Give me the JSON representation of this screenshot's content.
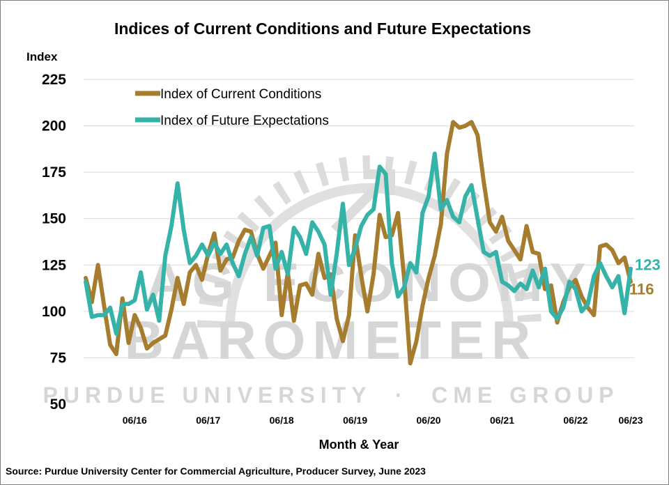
{
  "chart_data": {
    "type": "line",
    "title": "Indices of Current Conditions and Future Expectations",
    "ylabel": "Index",
    "xlabel": "Month & Year",
    "ylim": [
      50,
      225
    ],
    "yticks": [
      50,
      75,
      100,
      125,
      150,
      175,
      200,
      225
    ],
    "xticks": [
      "06/16",
      "06/17",
      "06/18",
      "06/19",
      "06/20",
      "06/21",
      "06/22",
      "06/23"
    ],
    "grid": true,
    "legend_position": "top-left",
    "x_start": "10/15",
    "x_step": "1 month",
    "series": [
      {
        "name": "Index of Current Conditions",
        "color": "#A67C2E",
        "end_label": "116",
        "values": [
          118,
          105,
          125,
          103,
          82,
          77,
          107,
          83,
          98,
          91,
          80,
          83,
          85,
          87,
          101,
          118,
          104,
          121,
          125,
          117,
          131,
          142,
          122,
          128,
          129,
          138,
          144,
          143,
          131,
          123,
          130,
          137,
          98,
          121,
          95,
          114,
          115,
          109,
          131,
          118,
          120,
          96,
          84,
          98,
          141,
          119,
          100,
          120,
          152,
          140,
          141,
          153,
          118,
          72,
          84,
          103,
          118,
          130,
          147,
          185,
          202,
          199,
          200,
          202,
          195,
          170,
          148,
          143,
          151,
          138,
          133,
          128,
          146,
          132,
          131,
          112,
          114,
          94,
          105,
          113,
          117,
          108,
          102,
          98,
          135,
          136,
          133,
          126,
          129,
          116
        ]
      },
      {
        "name": "Index of Future Expectations",
        "color": "#36B3A8",
        "end_label": "123",
        "values": [
          116,
          97,
          98,
          98,
          102,
          88,
          104,
          104,
          106,
          121,
          101,
          109,
          95,
          130,
          146,
          169,
          144,
          126,
          130,
          136,
          130,
          137,
          131,
          136,
          126,
          119,
          131,
          140,
          130,
          145,
          146,
          123,
          132,
          120,
          145,
          140,
          131,
          148,
          143,
          136,
          109,
          131,
          158,
          125,
          134,
          146,
          152,
          155,
          178,
          174,
          126,
          108,
          113,
          126,
          121,
          153,
          162,
          185,
          155,
          160,
          151,
          148,
          162,
          168,
          150,
          132,
          130,
          132,
          116,
          114,
          111,
          115,
          112,
          122,
          113,
          123,
          100,
          96,
          102,
          116,
          112,
          100,
          104,
          119,
          126,
          119,
          113,
          119,
          99,
          123
        ]
      }
    ]
  },
  "watermark": {
    "line1": "AG ECONOMY",
    "line2": "BAROMETER",
    "line3": "PURDUE UNIVERSITY  ·  CME GROUP"
  },
  "source": "Source: Purdue University Center for Commercial Agriculture, Producer Survey, June 2023"
}
